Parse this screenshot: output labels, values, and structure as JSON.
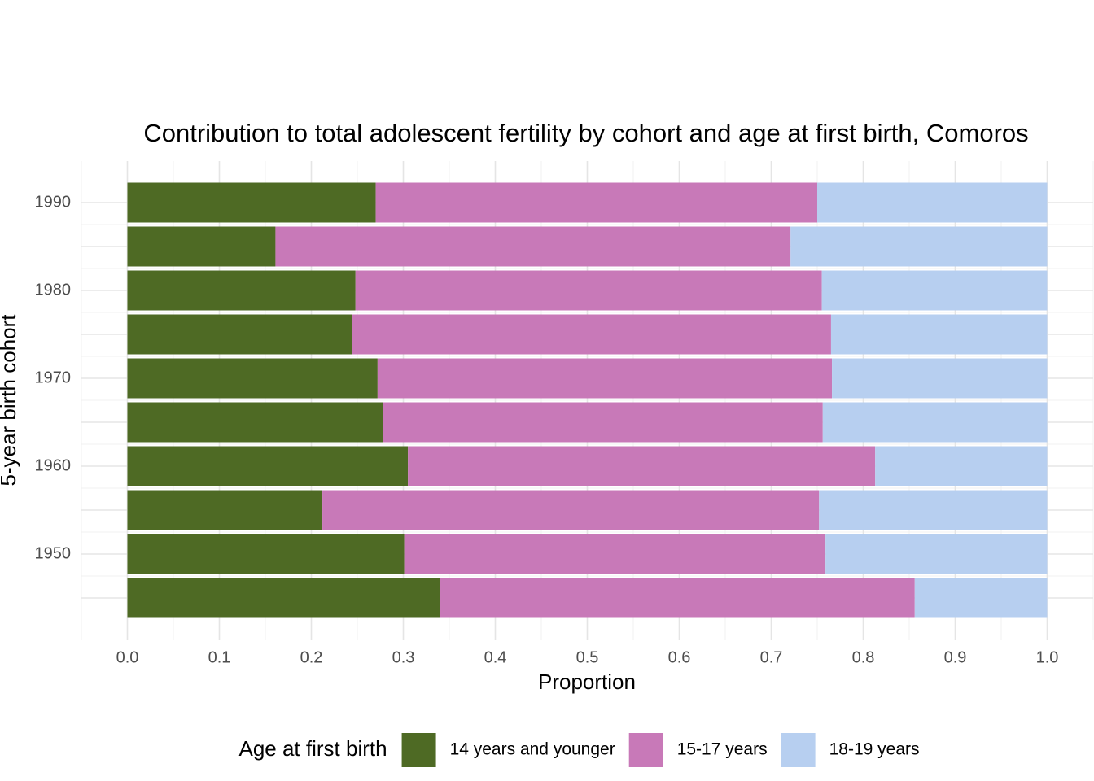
{
  "chart_data": {
    "type": "stacked-barh",
    "title": "Contribution to total adolescent fertility by cohort and age at first birth,  Comoros",
    "xlabel": "Proportion",
    "ylabel": "5-year birth cohort",
    "legend_title": "Age at first birth",
    "legend": "bottom",
    "grid": true,
    "categories": [
      null,
      "1950",
      null,
      "1960",
      null,
      "1970",
      null,
      "1980",
      null,
      "1990"
    ],
    "series": [
      {
        "name": "14 years and younger",
        "color": "#4e6a24",
        "values": [
          0.34,
          0.301,
          0.212,
          0.305,
          0.278,
          0.272,
          0.244,
          0.248,
          0.161,
          0.27
        ]
      },
      {
        "name": "15-17 years",
        "color": "#c879b8",
        "values": [
          0.516,
          0.458,
          0.54,
          0.508,
          0.478,
          0.494,
          0.521,
          0.507,
          0.56,
          0.48
        ]
      },
      {
        "name": "18-19 years",
        "color": "#b7cff0",
        "values": [
          0.144,
          0.241,
          0.248,
          0.187,
          0.244,
          0.234,
          0.235,
          0.245,
          0.279,
          0.25
        ]
      }
    ],
    "xlim": [
      -0.05,
      1.05
    ],
    "xticks": [
      {
        "value": 0,
        "label": "0.0"
      },
      0.1,
      0.2,
      0.3,
      0.4,
      0.5,
      0.6,
      0.7,
      0.8,
      0.9,
      {
        "value": 1,
        "label": "1.0"
      }
    ]
  }
}
